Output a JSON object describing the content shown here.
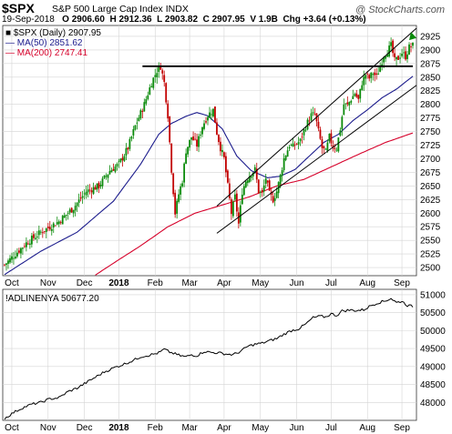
{
  "header": {
    "symbol": "$SPX",
    "name": "S&P 500 Large Cap Index",
    "exchange": "INDX",
    "date": "19-Sep-2018",
    "open": "O 2906.60",
    "high": "H 2912.36",
    "low": "L 2903.82",
    "close": "C 2907.95",
    "volume": "V 1.9B",
    "chg": "Chg +3.64 (+0.13%)",
    "brand": "@ StockCharts.com"
  },
  "colors": {
    "up": "#0a8a0a",
    "down": "#c20000",
    "ma50": "#1b1b8c",
    "ma200": "#d6002a",
    "grid": "#d4d4d4"
  },
  "chart_data": [
    {
      "type": "candlestick",
      "legend": [
        {
          "name": "$SPX (Daily) 2907.95",
          "color": "#000000"
        },
        {
          "name": "MA(50) 2851.62",
          "color": "#1b1b8c"
        },
        {
          "name": "MA(200) 2747.41",
          "color": "#d6002a"
        }
      ],
      "x_labels": [
        "Oct",
        "Nov",
        "Dec",
        "2018",
        "Feb",
        "Mar",
        "Apr",
        "May",
        "Jun",
        "Jul",
        "Aug",
        "Sep"
      ],
      "y_ticks": [
        2500,
        2525,
        2550,
        2575,
        2600,
        2625,
        2650,
        2675,
        2700,
        2725,
        2750,
        2775,
        2800,
        2825,
        2850,
        2875,
        2900,
        2925
      ],
      "ylim": [
        2485,
        2945
      ],
      "close_anchors": [
        [
          0,
          2505
        ],
        [
          6,
          2525
        ],
        [
          12,
          2545
        ],
        [
          20,
          2565
        ],
        [
          30,
          2585
        ],
        [
          38,
          2610
        ],
        [
          45,
          2640
        ],
        [
          52,
          2650
        ],
        [
          58,
          2678
        ],
        [
          63,
          2690
        ],
        [
          68,
          2720
        ],
        [
          72,
          2760
        ],
        [
          77,
          2800
        ],
        [
          81,
          2840
        ],
        [
          84,
          2862
        ],
        [
          86,
          2870
        ],
        [
          88,
          2840
        ],
        [
          90,
          2780
        ],
        [
          92,
          2680
        ],
        [
          94,
          2600
        ],
        [
          96,
          2635
        ],
        [
          98,
          2660
        ],
        [
          100,
          2715
        ],
        [
          103,
          2740
        ],
        [
          106,
          2725
        ],
        [
          109,
          2760
        ],
        [
          112,
          2780
        ],
        [
          115,
          2790
        ],
        [
          117,
          2748
        ],
        [
          119,
          2720
        ],
        [
          121,
          2700
        ],
        [
          123,
          2650
        ],
        [
          125,
          2600
        ],
        [
          127,
          2630
        ],
        [
          129,
          2580
        ],
        [
          131,
          2640
        ],
        [
          133,
          2660
        ],
        [
          135,
          2670
        ],
        [
          138,
          2680
        ],
        [
          140,
          2640
        ],
        [
          142,
          2635
        ],
        [
          144,
          2665
        ],
        [
          146,
          2635
        ],
        [
          148,
          2625
        ],
        [
          150,
          2640
        ],
        [
          152,
          2668
        ],
        [
          154,
          2700
        ],
        [
          157,
          2725
        ],
        [
          159,
          2722
        ],
        [
          161,
          2728
        ],
        [
          163,
          2733
        ],
        [
          165,
          2752
        ],
        [
          167,
          2767
        ],
        [
          169,
          2780
        ],
        [
          171,
          2782
        ],
        [
          173,
          2750
        ],
        [
          175,
          2720
        ],
        [
          177,
          2712
        ],
        [
          179,
          2740
        ],
        [
          181,
          2722
        ],
        [
          183,
          2720
        ],
        [
          185,
          2755
        ],
        [
          187,
          2800
        ],
        [
          189,
          2798
        ],
        [
          191,
          2810
        ],
        [
          193,
          2820
        ],
        [
          195,
          2808
        ],
        [
          197,
          2840
        ],
        [
          199,
          2855
        ],
        [
          201,
          2848
        ],
        [
          203,
          2858
        ],
        [
          205,
          2850
        ],
        [
          207,
          2870
        ],
        [
          209,
          2890
        ],
        [
          211,
          2898
        ],
        [
          213,
          2908
        ],
        [
          215,
          2880
        ],
        [
          217,
          2885
        ],
        [
          219,
          2895
        ],
        [
          221,
          2888
        ],
        [
          223,
          2905
        ],
        [
          225,
          2908
        ]
      ],
      "moving_averages": [
        {
          "name": "MA(50)",
          "anchors": [
            [
              0,
              2487
            ],
            [
              20,
              2530
            ],
            [
              40,
              2565
            ],
            [
              60,
              2622
            ],
            [
              75,
              2690
            ],
            [
              85,
              2745
            ],
            [
              92,
              2765
            ],
            [
              100,
              2778
            ],
            [
              106,
              2785
            ],
            [
              112,
              2779
            ],
            [
              120,
              2755
            ],
            [
              128,
              2705
            ],
            [
              136,
              2678
            ],
            [
              145,
              2665
            ],
            [
              152,
              2668
            ],
            [
              160,
              2680
            ],
            [
              168,
              2705
            ],
            [
              176,
              2730
            ],
            [
              184,
              2745
            ],
            [
              192,
              2770
            ],
            [
              200,
              2790
            ],
            [
              208,
              2812
            ],
            [
              216,
              2828
            ],
            [
              225,
              2851.62
            ]
          ]
        },
        {
          "name": "MA(200)",
          "anchors": [
            [
              45,
              2475
            ],
            [
              60,
              2508
            ],
            [
              75,
              2540
            ],
            [
              90,
              2575
            ],
            [
              105,
              2600
            ],
            [
              120,
              2615
            ],
            [
              135,
              2630
            ],
            [
              150,
              2650
            ],
            [
              165,
              2662
            ],
            [
              180,
              2685
            ],
            [
              195,
              2708
            ],
            [
              210,
              2730
            ],
            [
              225,
              2747.41
            ]
          ]
        }
      ],
      "annotations": [
        {
          "type": "horizontal",
          "value": 2870,
          "x_from": 76,
          "x_to": 225
        },
        {
          "type": "trendline",
          "from": [
            117,
            2613
          ],
          "to": [
            225,
            2940
          ]
        },
        {
          "type": "trendline",
          "from": [
            117,
            2563
          ],
          "to": [
            225,
            2835
          ]
        }
      ]
    },
    {
      "type": "line",
      "legend": [
        {
          "name": "!ADLINENYA 50677.20",
          "color": "#000000"
        }
      ],
      "x_labels": [
        "Oct",
        "Nov",
        "Dec",
        "2018",
        "Feb",
        "Mar",
        "Apr",
        "May",
        "Jun",
        "Jul",
        "Aug",
        "Sep"
      ],
      "y_ticks": [
        48000,
        48500,
        49000,
        49500,
        50000,
        50500,
        51000
      ],
      "ylim": [
        47500,
        51150
      ],
      "anchors": [
        [
          0,
          47550
        ],
        [
          5,
          47720
        ],
        [
          10,
          47850
        ],
        [
          15,
          47950
        ],
        [
          20,
          48000
        ],
        [
          25,
          48100
        ],
        [
          30,
          48130
        ],
        [
          35,
          48300
        ],
        [
          40,
          48400
        ],
        [
          45,
          48550
        ],
        [
          50,
          48700
        ],
        [
          55,
          48850
        ],
        [
          60,
          48960
        ],
        [
          65,
          49050
        ],
        [
          70,
          49150
        ],
        [
          75,
          49270
        ],
        [
          80,
          49320
        ],
        [
          85,
          49380
        ],
        [
          88,
          49480
        ],
        [
          91,
          49400
        ],
        [
          94,
          49350
        ],
        [
          97,
          49300
        ],
        [
          100,
          49270
        ],
        [
          103,
          49330
        ],
        [
          106,
          49300
        ],
        [
          110,
          49420
        ],
        [
          114,
          49390
        ],
        [
          118,
          49380
        ],
        [
          122,
          49350
        ],
        [
          126,
          49330
        ],
        [
          130,
          49420
        ],
        [
          134,
          49560
        ],
        [
          138,
          49620
        ],
        [
          142,
          49650
        ],
        [
          146,
          49720
        ],
        [
          150,
          49780
        ],
        [
          154,
          49900
        ],
        [
          158,
          50000
        ],
        [
          162,
          50050
        ],
        [
          166,
          50180
        ],
        [
          170,
          50360
        ],
        [
          174,
          50400
        ],
        [
          177,
          50380
        ],
        [
          180,
          50470
        ],
        [
          183,
          50420
        ],
        [
          186,
          50550
        ],
        [
          190,
          50570
        ],
        [
          194,
          50560
        ],
        [
          198,
          50580
        ],
        [
          202,
          50700
        ],
        [
          206,
          50780
        ],
        [
          210,
          50830
        ],
        [
          213,
          50900
        ],
        [
          216,
          50780
        ],
        [
          219,
          50820
        ],
        [
          222,
          50700
        ],
        [
          225,
          50677.2
        ]
      ]
    }
  ]
}
